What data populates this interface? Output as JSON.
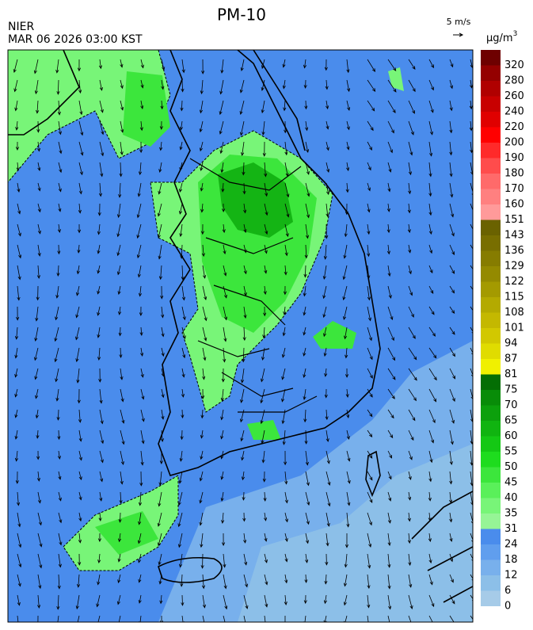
{
  "header": {
    "title": "PM-10",
    "source": "NIER",
    "timestamp": "MAR 06 2026 03:00 KST"
  },
  "wind_scale": {
    "label": "5 m/s"
  },
  "colorbar": {
    "unit": "μg/m",
    "unit_superscript": "3",
    "levels": [
      0,
      6,
      12,
      18,
      24,
      31,
      35,
      40,
      45,
      50,
      55,
      60,
      65,
      70,
      75,
      81,
      87,
      94,
      101,
      108,
      115,
      122,
      129,
      136,
      143,
      151,
      160,
      170,
      180,
      190,
      200,
      220,
      240,
      260,
      280,
      320
    ],
    "colors": [
      "#a6cbe8",
      "#8cbfe8",
      "#78b0ec",
      "#609eee",
      "#4a8cec",
      "#96f596",
      "#78f578",
      "#5af05a",
      "#3ce63c",
      "#1edc1e",
      "#14c814",
      "#10b410",
      "#0ca00c",
      "#088c08",
      "#046e04",
      "#f0f000",
      "#e0dc00",
      "#d2c800",
      "#c4b800",
      "#b4aa00",
      "#a49a00",
      "#948a00",
      "#867c00",
      "#786e00",
      "#6a6200",
      "#ff9a9a",
      "#ff8080",
      "#ff6a6a",
      "#ff4c4c",
      "#ff2a2a",
      "#ff0000",
      "#e00000",
      "#c80000",
      "#b00000",
      "#940000",
      "#6e0000"
    ]
  }
}
